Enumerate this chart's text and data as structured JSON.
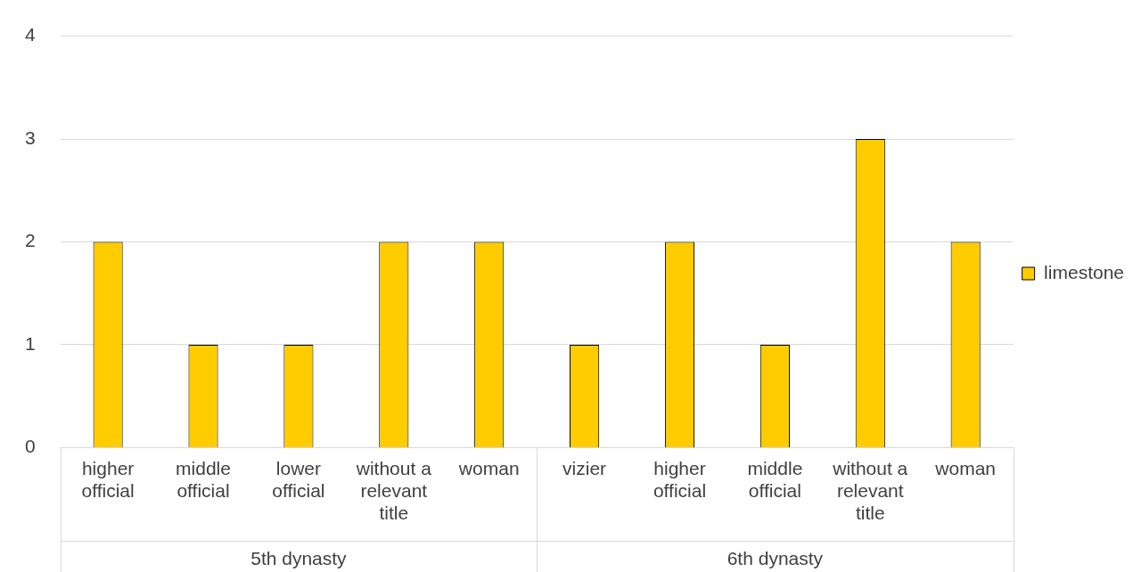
{
  "chart_data": {
    "type": "bar",
    "categories": [
      "higher official",
      "middle official",
      "lower official",
      "without a relevant title",
      "woman",
      "vizier",
      "higher official",
      "middle official",
      "without a relevant title",
      "woman"
    ],
    "series": [
      {
        "name": "limestone",
        "color": "#ffcc00",
        "values": [
          2,
          1,
          1,
          2,
          2,
          1,
          2,
          1,
          3,
          2
        ]
      }
    ],
    "ylim": [
      0,
      4
    ],
    "yticks": [
      0,
      1,
      2,
      3,
      4
    ],
    "grid": "y",
    "legend": "right",
    "annotations": [
      "5th dynasty",
      "6th dynasty"
    ]
  }
}
